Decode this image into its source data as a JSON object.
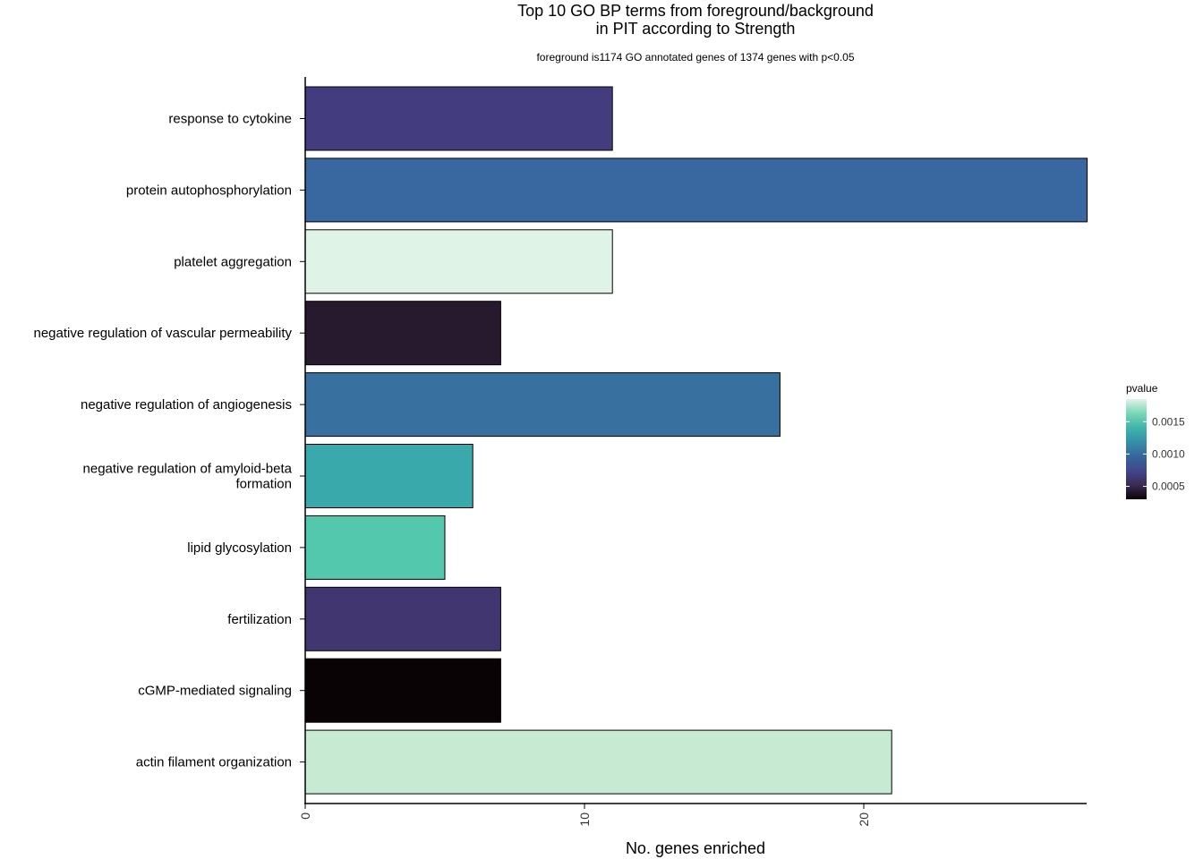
{
  "chart_data": {
    "type": "bar",
    "orientation": "horizontal",
    "title": "Top 10 GO BP terms from foreground/background\nin PIT according to Strength",
    "subtitle": "foreground is1174 GO annotated genes of 1374 genes with p<0.05",
    "xlabel": "No. genes enriched",
    "ylabel": "",
    "xlim": [
      0,
      28
    ],
    "xticks": [
      0,
      10,
      20
    ],
    "categories": [
      "response to cytokine",
      "protein autophosphorylation",
      "platelet aggregation",
      "negative regulation of vascular permeability",
      "negative regulation of angiogenesis",
      "negative regulation of amyloid-beta\nformation",
      "lipid glycosylation",
      "fertilization",
      "cGMP-mediated signaling",
      "actin filament organization"
    ],
    "values": [
      11,
      28,
      11,
      7,
      17,
      6,
      5,
      7,
      7,
      21
    ],
    "bar_colors": [
      "#433d80",
      "#38689f",
      "#dff3e6",
      "#281a2e",
      "#3870a0",
      "#3aa9ac",
      "#53c8ad",
      "#41366f",
      "#0a0305",
      "#c7ead2"
    ],
    "legend": {
      "title": "pvalue",
      "placement": "right",
      "ticks": [
        0.0005,
        0.001,
        0.0015
      ],
      "tick_labels": [
        "0.0005",
        "0.0010",
        "0.0015"
      ],
      "range": [
        0.0003,
        0.00185
      ],
      "colormap": [
        "#0a0305",
        "#3b2a56",
        "#40478c",
        "#37659e",
        "#3490a8",
        "#3eb5aa",
        "#79d6b6",
        "#dff3e6"
      ]
    }
  }
}
